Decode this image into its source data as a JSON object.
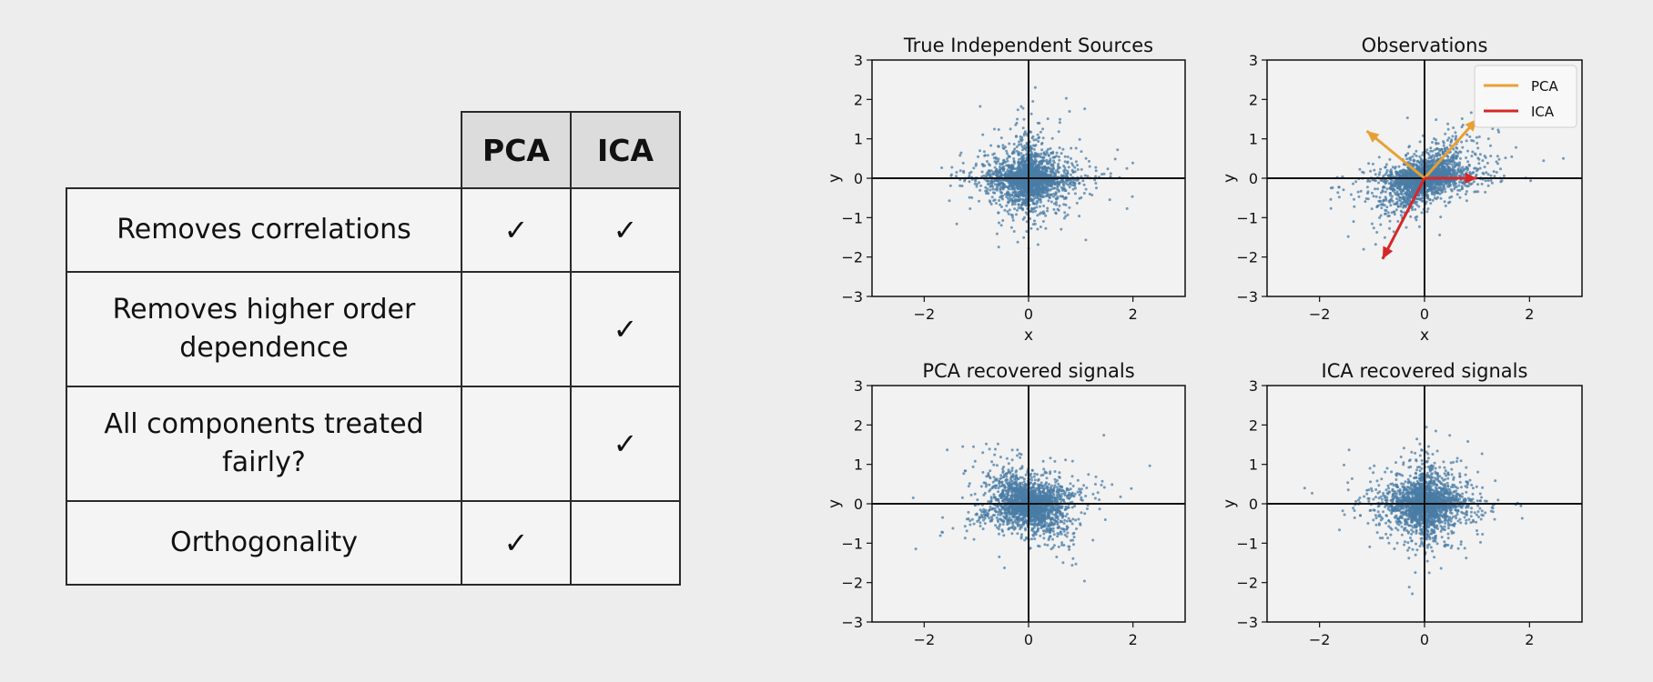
{
  "table": {
    "columns": [
      "PCA",
      "ICA"
    ],
    "rows": [
      {
        "feature_lines": [
          "Removes correlations"
        ],
        "pca": "✓",
        "ica": "✓"
      },
      {
        "feature_lines": [
          "Removes higher order",
          "dependence"
        ],
        "pca": "",
        "ica": "✓"
      },
      {
        "feature_lines": [
          "All components treated",
          "fairly?"
        ],
        "pca": "",
        "ica": "✓"
      },
      {
        "feature_lines": [
          "Orthogonality"
        ],
        "pca": "✓",
        "ica": ""
      }
    ]
  },
  "chart_data": [
    {
      "type": "scatter",
      "title": "True Independent Sources",
      "xlabel": "x",
      "ylabel": "y",
      "xlim": [
        -3,
        3
      ],
      "ylim": [
        -3,
        3
      ],
      "x_ticks": [
        -2,
        0,
        2
      ],
      "y_ticks": [
        3,
        2,
        1,
        0,
        -1,
        -2,
        -3
      ],
      "point_color": "#4a7ca6",
      "distribution": {
        "shape": "cross",
        "axis_angles_deg": [
          0,
          90
        ]
      }
    },
    {
      "type": "scatter",
      "title": "Observations",
      "xlabel": "x",
      "ylabel": "y",
      "xlim": [
        -3,
        3
      ],
      "ylim": [
        -3,
        3
      ],
      "x_ticks": [
        -2,
        0,
        2
      ],
      "y_ticks": [
        3,
        2,
        1,
        0,
        -1,
        -2,
        -3
      ],
      "point_color": "#4a7ca6",
      "distribution": {
        "shape": "cross",
        "axis_angles_deg": [
          0,
          60
        ]
      },
      "legend": {
        "placement": "top-right",
        "entries": [
          {
            "name": "PCA",
            "color": "#e8a033"
          },
          {
            "name": "ICA",
            "color": "#d62728"
          }
        ]
      },
      "vectors": [
        {
          "series": "PCA",
          "x": 1.0,
          "y": 1.5
        },
        {
          "series": "PCA",
          "x": -1.1,
          "y": 1.2
        },
        {
          "series": "ICA",
          "x": 1.0,
          "y": 0.0
        },
        {
          "series": "ICA",
          "x": -0.8,
          "y": -2.05
        }
      ]
    },
    {
      "type": "scatter",
      "title": "PCA recovered signals",
      "xlabel": "",
      "ylabel": "y",
      "xlim": [
        -3,
        3
      ],
      "ylim": [
        -3,
        3
      ],
      "x_ticks": [
        -2,
        0,
        2
      ],
      "y_ticks": [
        3,
        2,
        1,
        0,
        -1,
        -2,
        -3
      ],
      "point_color": "#4a7ca6",
      "distribution": {
        "shape": "cross",
        "axis_angles_deg": [
          -60,
          20
        ]
      }
    },
    {
      "type": "scatter",
      "title": "ICA recovered signals",
      "xlabel": "",
      "ylabel": "y",
      "xlim": [
        -3,
        3
      ],
      "ylim": [
        -3,
        3
      ],
      "x_ticks": [
        -2,
        0,
        2
      ],
      "y_ticks": [
        3,
        2,
        1,
        0,
        -1,
        -2,
        -3
      ],
      "point_color": "#4a7ca6",
      "distribution": {
        "shape": "cross",
        "axis_angles_deg": [
          0,
          90
        ]
      }
    }
  ]
}
